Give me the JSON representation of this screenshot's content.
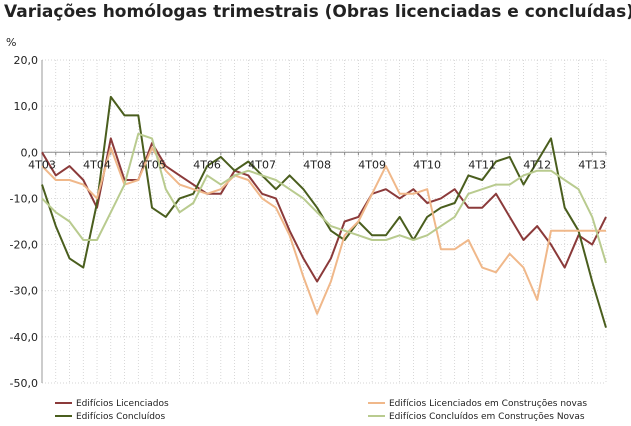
{
  "chart_data": {
    "type": "line",
    "title": "Variações homólogas trimestrais (Obras licenciadas e concluídas)",
    "ylabel": "%",
    "xlabel": "",
    "ylim": [
      -50,
      20
    ],
    "y_ticks": [
      "20,0",
      "10,0",
      "0,0",
      "-10,0",
      "-20,0",
      "-30,0",
      "-40,0",
      "-50,0"
    ],
    "y_tick_values": [
      20,
      10,
      0,
      -10,
      -20,
      -30,
      -40,
      -50
    ],
    "x_labels": [
      {
        "index": 0,
        "label": "4T03"
      },
      {
        "index": 4,
        "label": "4T04"
      },
      {
        "index": 8,
        "label": "4T05"
      },
      {
        "index": 12,
        "label": "4T06"
      },
      {
        "index": 16,
        "label": "4T07"
      },
      {
        "index": 20,
        "label": "4T08"
      },
      {
        "index": 24,
        "label": "4T09"
      },
      {
        "index": 28,
        "label": "4T10"
      },
      {
        "index": 32,
        "label": "4T11"
      },
      {
        "index": 36,
        "label": "4T12"
      },
      {
        "index": 40,
        "label": "4T13"
      }
    ],
    "grid": true,
    "legend_position": "bottom",
    "series": [
      {
        "name": "Edifícios Licenciados",
        "color": "#8b3a3a",
        "values": [
          0,
          -5,
          -3,
          -6,
          -12,
          3,
          -6,
          -6,
          2,
          -3,
          -5,
          -7,
          -9,
          -9,
          -4,
          -5,
          -9,
          -10,
          -17,
          -23,
          -28,
          -23,
          -15,
          -14,
          -9,
          -8,
          -10,
          -8,
          -11,
          -10,
          -8,
          -12,
          -12,
          -9,
          -14,
          -19,
          -16,
          -20,
          -25,
          -18,
          -20,
          -14
        ]
      },
      {
        "name": "Edifícios Concluídos",
        "color": "#4a5e1e",
        "values": [
          -7,
          -16,
          -23,
          -25,
          -11,
          12,
          8,
          8,
          -12,
          -14,
          -10,
          -9,
          -3,
          -1,
          -4,
          -2,
          -5,
          -8,
          -5,
          -8,
          -12,
          -17,
          -19,
          -15,
          -18,
          -18,
          -14,
          -19,
          -14,
          -12,
          -11,
          -5,
          -6,
          -2,
          -1,
          -7,
          -2,
          3,
          -12,
          -17,
          -28,
          -38
        ]
      },
      {
        "name": "Edifícios Licenciados em Construções novas",
        "color": "#f0b88a",
        "values": [
          -3,
          -6,
          -6,
          -7,
          -10,
          1,
          -7,
          -6,
          1,
          -4,
          -7,
          -8,
          -9,
          -8,
          -5,
          -6,
          -10,
          -12,
          -18,
          -27,
          -35,
          -28,
          -18,
          -15,
          -9,
          -3,
          -9,
          -9,
          -8,
          -21,
          -21,
          -19,
          -25,
          -26,
          -22,
          -25,
          -32,
          -17,
          -17,
          -17,
          -17,
          -17
        ]
      },
      {
        "name": "Edifícios Concluídos em Construções Novas",
        "color": "#b9cb8f",
        "values": [
          -10,
          -13,
          -15,
          -19,
          -19,
          -13,
          -7,
          4,
          3,
          -8,
          -13,
          -11,
          -5,
          -7,
          -5,
          -4,
          -5,
          -6,
          -8,
          -10,
          -13,
          -16,
          -17,
          -18,
          -19,
          -19,
          -18,
          -19,
          -18,
          -16,
          -14,
          -9,
          -8,
          -7,
          -7,
          -5,
          -4,
          -4,
          -6,
          -8,
          -14,
          -24
        ]
      }
    ]
  }
}
